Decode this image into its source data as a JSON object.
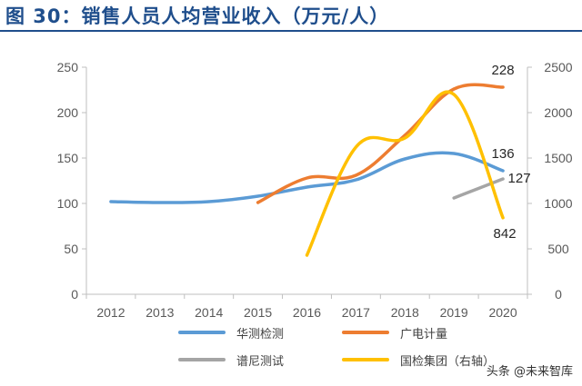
{
  "title": "图 30：销售人员人均营业收入（万元/人）",
  "watermark": "头条 @未来智库",
  "chart_data": {
    "type": "line",
    "x": [
      "2012",
      "2013",
      "2014",
      "2015",
      "2016",
      "2017",
      "2018",
      "2019",
      "2020"
    ],
    "y_left": {
      "ticks": [
        "0",
        "50",
        "100",
        "150",
        "200",
        "250"
      ],
      "range": [
        0,
        250
      ]
    },
    "y_right": {
      "ticks": [
        "0",
        "500",
        "1000",
        "1500",
        "2000",
        "2500"
      ],
      "range": [
        0,
        2500
      ]
    },
    "grid": false,
    "legend_position": "bottom",
    "series": [
      {
        "name": "华测检测",
        "axis": "left",
        "color": "#5b9bd5",
        "values": [
          102,
          101,
          102,
          108,
          118,
          126,
          149,
          155,
          136
        ]
      },
      {
        "name": "广电计量",
        "axis": "left",
        "color": "#ed7d31",
        "values": [
          null,
          null,
          null,
          101,
          128,
          131,
          175,
          226,
          228
        ]
      },
      {
        "name": "谱尼测试",
        "axis": "left",
        "color": "#a5a5a5",
        "values": [
          null,
          null,
          null,
          null,
          null,
          null,
          null,
          106,
          127
        ]
      },
      {
        "name": "国检集团（右轴）",
        "axis": "right",
        "color": "#ffc000",
        "values": [
          null,
          null,
          null,
          null,
          430,
          1620,
          1720,
          2200,
          842
        ]
      }
    ],
    "annotations": [
      {
        "text": "228",
        "series": 1,
        "index": 8
      },
      {
        "text": "136",
        "series": 0,
        "index": 8
      },
      {
        "text": "127",
        "series": 2,
        "index": 8
      },
      {
        "text": "842",
        "series": 3,
        "index": 8
      }
    ]
  }
}
